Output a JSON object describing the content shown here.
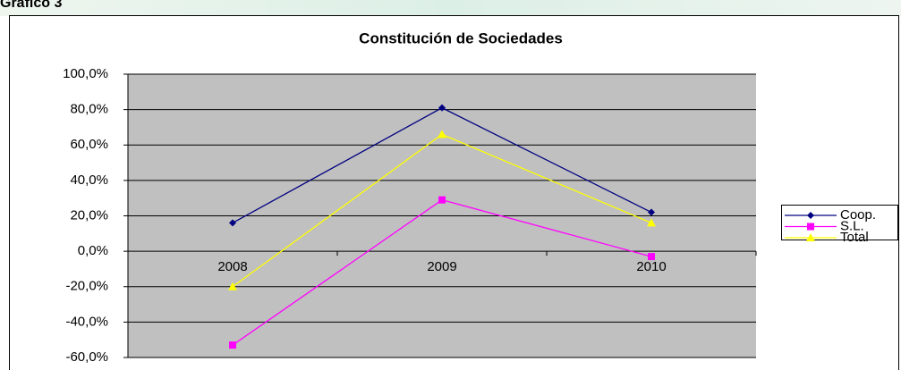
{
  "header": "Gráfico 3",
  "chart_data": {
    "type": "line",
    "title": "Constitución de Sociedades",
    "categories": [
      "2008",
      "2009",
      "2010"
    ],
    "series": [
      {
        "name": "Coop.",
        "color": "#000080",
        "marker": "diamond",
        "values": [
          16,
          81,
          22
        ]
      },
      {
        "name": "S.L.",
        "color": "#ff00ff",
        "marker": "square",
        "values": [
          -53,
          29,
          -3
        ]
      },
      {
        "name": "Total",
        "color": "#ffff00",
        "marker": "triangle",
        "values": [
          -20,
          66,
          16
        ]
      }
    ],
    "ylim": [
      -60,
      100
    ],
    "yticks": [
      {
        "value": -60,
        "label": "-60,0%"
      },
      {
        "value": -40,
        "label": "-40,0%"
      },
      {
        "value": -20,
        "label": "-20,0%"
      },
      {
        "value": 0,
        "label": "0,0%"
      },
      {
        "value": 20,
        "label": "20,0%"
      },
      {
        "value": 40,
        "label": "40,0%"
      },
      {
        "value": 60,
        "label": "60,0%"
      },
      {
        "value": 80,
        "label": "80,0%"
      },
      {
        "value": 100,
        "label": "100,0%"
      }
    ],
    "grid": true,
    "legend": "right"
  }
}
